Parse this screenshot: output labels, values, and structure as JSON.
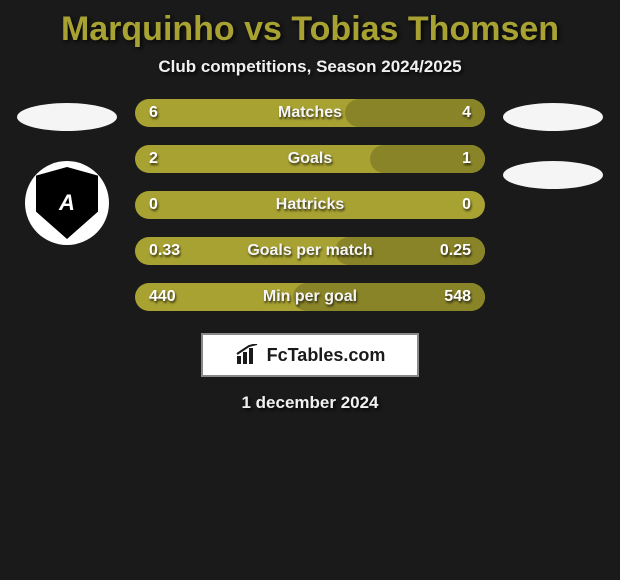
{
  "title": "Marquinho vs Tobias Thomsen",
  "subtitle": "Club competitions, Season 2024/2025",
  "date": "1 december 2024",
  "brand": "FcTables.com",
  "colors": {
    "background": "#1a1a1a",
    "bar_base": "#a8a232",
    "bar_dark": "#8a8428",
    "title_color": "#a8a232",
    "text_light": "#f0f0f0"
  },
  "bars": [
    {
      "label": "Matches",
      "left": "6",
      "right": "4",
      "right_fill_pct": 40
    },
    {
      "label": "Goals",
      "left": "2",
      "right": "1",
      "right_fill_pct": 33
    },
    {
      "label": "Hattricks",
      "left": "0",
      "right": "0",
      "right_fill_pct": 0
    },
    {
      "label": "Goals per match",
      "left": "0.33",
      "right": "0.25",
      "right_fill_pct": 43
    },
    {
      "label": "Min per goal",
      "left": "440",
      "right": "548",
      "right_fill_pct": 55
    }
  ],
  "left_badge_letters": "A"
}
